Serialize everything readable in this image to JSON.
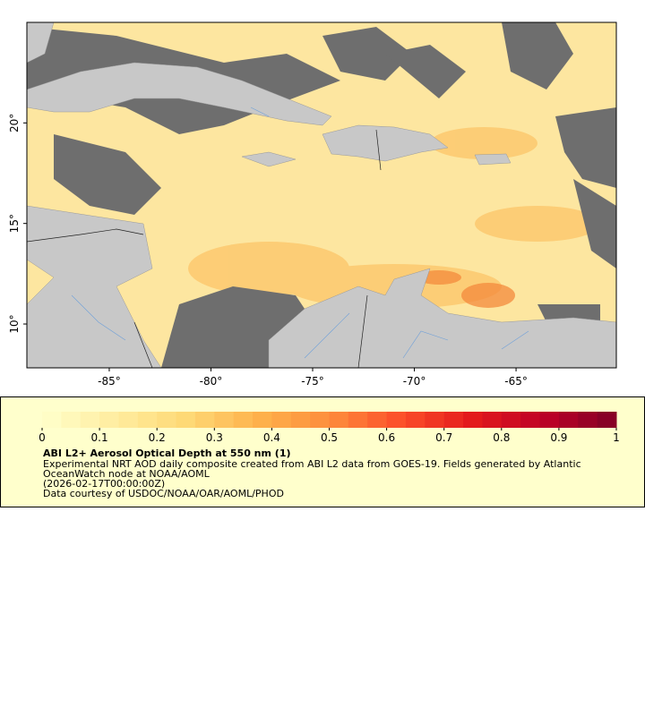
{
  "map": {
    "xlim": [
      -89.05,
      -60.07
    ],
    "ylim": [
      7.82,
      25
    ],
    "xticks": [
      {
        "value": -85,
        "label": "-85°"
      },
      {
        "value": -80,
        "label": "-80°"
      },
      {
        "value": -75,
        "label": "-75°"
      },
      {
        "value": -70,
        "label": "-70°"
      },
      {
        "value": -65,
        "label": "-65°"
      }
    ],
    "yticks": [
      {
        "value": 10,
        "label": "10°"
      },
      {
        "value": 15,
        "label": "15°"
      },
      {
        "value": 20,
        "label": "20°"
      }
    ]
  },
  "colorbar": {
    "lim": [
      0,
      1
    ],
    "ticks": [
      0,
      0.1,
      0.2,
      0.3,
      0.4,
      0.5,
      0.6,
      0.7,
      0.8,
      0.9,
      1
    ],
    "colors": [
      "#ffffcc",
      "#ffeda0",
      "#fed976",
      "#feb24c",
      "#fd8d3c",
      "#fc4e2a",
      "#e31a1c",
      "#bd0026",
      "#800026"
    ]
  },
  "caption": {
    "title": "ABI L2+ Aerosol Optical Depth at 550 nm (1)",
    "lines": [
      "Experimental NRT AOD daily composite created from ABI L2 data from GOES-19. Fields generated by Atlantic",
      "OceanWatch node at NOAA/AOML",
      "(2026-02-17T00:00:00Z)",
      "Data courtesy of USDOC/NOAA/OAR/AOML/PHOD"
    ]
  }
}
